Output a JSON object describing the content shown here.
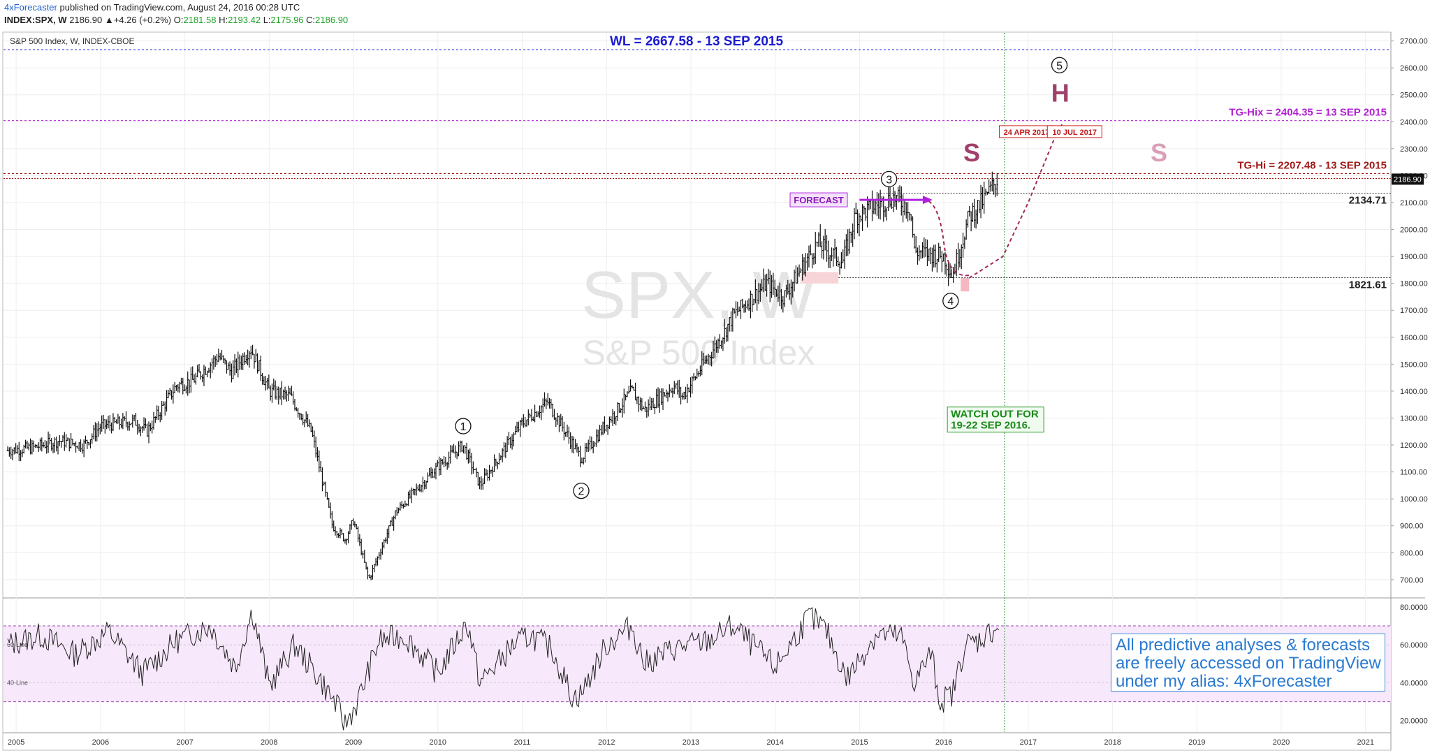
{
  "header": {
    "author": "4xForecaster",
    "published": "published on TradingView.com, August 24, 2016 00:28 UTC",
    "symbol": "INDEX:SPX, W",
    "last": "2186.90",
    "change": "+4.26 (+0.2%)",
    "o_label": "O:",
    "o": "2181.58",
    "h_label": "H:",
    "h": "2193.42",
    "l_label": "L:",
    "l": "2175.96",
    "c_label": "C:",
    "c": "2186.90"
  },
  "chart_data": {
    "type": "candlestick",
    "title": "S&P 500 Index, W, INDEX-CBOE",
    "watermark_symbol": "SPX, W",
    "watermark_name": "S&P 500 Index",
    "x_ticks": [
      "2005",
      "2006",
      "2007",
      "2008",
      "2009",
      "2010",
      "2011",
      "2012",
      "2013",
      "2014",
      "2015",
      "2016",
      "2017",
      "2018",
      "2019",
      "2020",
      "2021"
    ],
    "y_ticks": [
      "700.00",
      "800.00",
      "900.00",
      "1000.00",
      "1100.00",
      "1200.00",
      "1300.00",
      "1400.00",
      "1500.00",
      "1600.00",
      "1700.00",
      "1800.00",
      "1900.00",
      "2000.00",
      "2100.00",
      "2200.00",
      "2300.00",
      "2400.00",
      "2500.00",
      "2600.00",
      "2700.00"
    ],
    "ylim": [
      640,
      2730
    ],
    "xlim": [
      2004.85,
      2021.3
    ],
    "price_series": {
      "name": "SPX weekly close",
      "x": [
        2004.9,
        2005.2,
        2005.5,
        2005.8,
        2006.0,
        2006.4,
        2006.55,
        2006.9,
        2007.1,
        2007.4,
        2007.55,
        2007.78,
        2008.0,
        2008.25,
        2008.5,
        2008.75,
        2008.9,
        2009.0,
        2009.18,
        2009.5,
        2010.0,
        2010.3,
        2010.5,
        2010.8,
        2011.0,
        2011.3,
        2011.7,
        2011.95,
        2012.3,
        2012.45,
        2012.8,
        2012.9,
        2013.4,
        2013.5,
        2013.9,
        2014.1,
        2014.5,
        2014.8,
        2014.95,
        2015.4,
        2015.6,
        2015.65,
        2016.0,
        2016.1,
        2016.3,
        2016.45,
        2016.64
      ],
      "y": [
        1180,
        1190,
        1215,
        1200,
        1270,
        1290,
        1250,
        1420,
        1440,
        1530,
        1470,
        1560,
        1400,
        1380,
        1250,
        900,
        850,
        920,
        700,
        950,
        1120,
        1200,
        1050,
        1190,
        1280,
        1360,
        1150,
        1260,
        1400,
        1330,
        1420,
        1380,
        1620,
        1680,
        1800,
        1750,
        1950,
        1880,
        2050,
        2120,
        2080,
        1920,
        1900,
        1830,
        2050,
        2100,
        2187
      ]
    },
    "projection": {
      "name": "forecast path",
      "x": [
        2016.3,
        2016.7,
        2017.0,
        2017.3,
        2017.4
      ],
      "y": [
        1820,
        1900,
        2100,
        2330,
        2390
      ]
    },
    "levels": [
      {
        "label": "WL = 2667.58 - 13 SEP 2015",
        "value": 2667.58,
        "color": "#1a1acf"
      },
      {
        "label": "TG-Hix = 2404.35 = 13 SEP 2015",
        "value": 2404.35,
        "color": "#b020d0"
      },
      {
        "label": "TG-Hi = 2207.48 - 13 SEP 2015",
        "value": 2207.48,
        "color": "#a01818"
      },
      {
        "label": "2134.71",
        "value": 2134.71,
        "color": "#222222"
      },
      {
        "label": "1821.61",
        "value": 1821.61,
        "color": "#222222"
      }
    ],
    "last_price": "2186.90",
    "wave_labels": [
      {
        "label": "1",
        "x": 2010.3,
        "y": 1270
      },
      {
        "label": "2",
        "x": 2011.7,
        "y": 1030
      },
      {
        "label": "3",
        "x": 2015.35,
        "y": 2187
      },
      {
        "label": "4",
        "x": 2016.08,
        "y": 1735
      },
      {
        "label": "5",
        "x": 2017.37,
        "y": 2610
      }
    ],
    "pattern_labels": [
      {
        "label": "S",
        "x": 2016.33,
        "y": 2253,
        "color": "#a0406a"
      },
      {
        "label": "H",
        "x": 2017.38,
        "y": 2475,
        "color": "#a0406a"
      },
      {
        "label": "S",
        "x": 2018.55,
        "y": 2253,
        "color": "#d8a0b8"
      }
    ],
    "date_tags": [
      {
        "label": "24 APR 2017",
        "x": 2016.98,
        "y": 2362
      },
      {
        "label": "10 JUL 2017",
        "x": 2017.55,
        "y": 2362
      }
    ],
    "forecast_label": "FORECAST",
    "watch_note": [
      "WATCH OUT FOR",
      "19-22 SEP 2016."
    ],
    "vertical_marker_x": 2016.72,
    "indicator": {
      "name": "RSI",
      "y_ticks": [
        "20.0000",
        "40.0000",
        "60.0000",
        "80.0000"
      ],
      "ylim": [
        14,
        84
      ],
      "upper_band": 70,
      "lower_band": 30,
      "line_labels": [
        "60-Line",
        "40-Line"
      ],
      "x": [
        2004.9,
        2005.3,
        2005.7,
        2006.1,
        2006.5,
        2006.9,
        2007.3,
        2007.6,
        2007.8,
        2008.0,
        2008.3,
        2008.6,
        2008.8,
        2008.9,
        2009.05,
        2009.3,
        2009.6,
        2010.0,
        2010.35,
        2010.5,
        2010.9,
        2011.1,
        2011.35,
        2011.6,
        2011.7,
        2012.0,
        2012.3,
        2012.45,
        2012.8,
        2013.2,
        2013.5,
        2014.0,
        2014.4,
        2014.6,
        2014.85,
        2015.2,
        2015.5,
        2015.65,
        2015.85,
        2015.95,
        2016.1,
        2016.25,
        2016.4,
        2016.65
      ],
      "y": [
        60,
        65,
        55,
        67,
        45,
        62,
        70,
        48,
        78,
        38,
        60,
        42,
        28,
        18,
        30,
        62,
        65,
        45,
        72,
        40,
        60,
        65,
        58,
        32,
        34,
        60,
        70,
        50,
        58,
        62,
        70,
        48,
        75,
        68,
        42,
        66,
        64,
        40,
        56,
        30,
        34,
        60,
        62,
        70
      ]
    }
  },
  "callout": {
    "lines": [
      "All predictive analyses & forecasts",
      "are freely accessed on TradingView",
      "under my alias: 4xForecaster"
    ]
  },
  "colors": {
    "candle": "#111111",
    "grid": "#eeeeee",
    "rsi_band_fill": "#f7e8fb",
    "vertical_marker": "#2a9a2a",
    "forecast_arrow": "#b020e0"
  }
}
